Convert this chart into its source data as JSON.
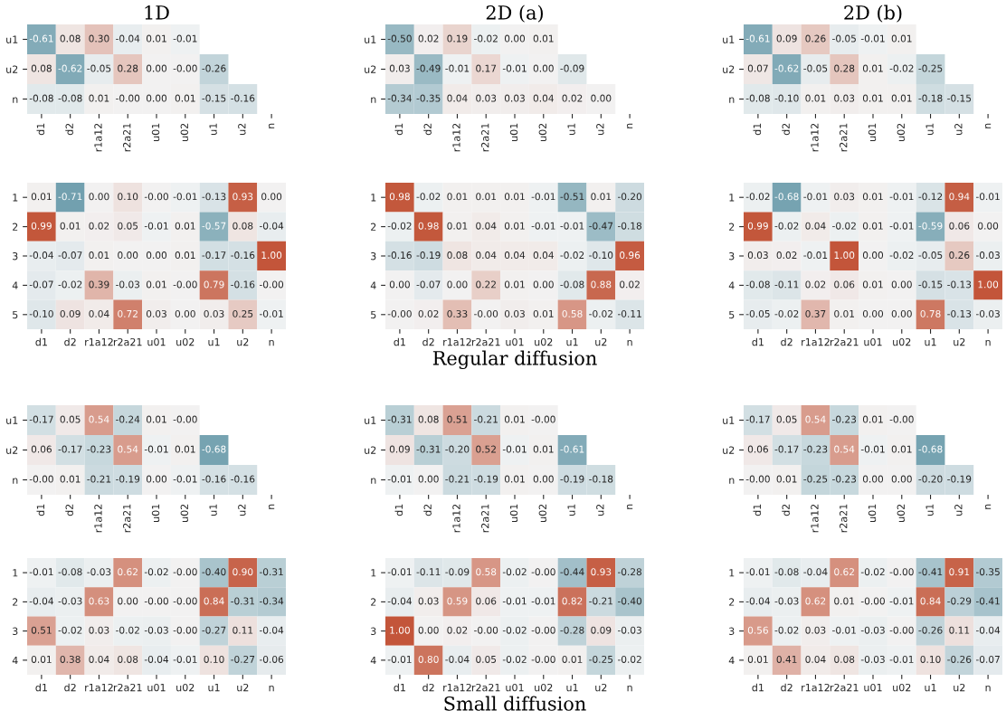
{
  "chart_data": [
    {
      "type": "heatmap",
      "title": "1D",
      "categories": [
        "d1",
        "d2",
        "r1a12",
        "r2a21",
        "u01",
        "u02",
        "u1",
        "u2",
        "n"
      ],
      "y_categories": [
        "u1",
        "u2",
        "n"
      ],
      "cells": [
        [
          -0.61,
          0.08,
          0.3,
          -0.04,
          0.01,
          -0.01,
          null,
          null,
          null
        ],
        [
          0.08,
          -0.62,
          -0.05,
          0.28,
          0.0,
          -0.0,
          -0.26,
          null,
          null
        ],
        [
          -0.08,
          -0.08,
          0.01,
          -0.0,
          0.0,
          0.01,
          -0.15,
          -0.16,
          null
        ]
      ],
      "cell_labels": [
        [
          "-0.61",
          "0.08",
          "0.30",
          "-0.04",
          "0.01",
          "-0.01",
          null,
          null,
          null
        ],
        [
          "0.08",
          "-0.62",
          "-0.05",
          "0.28",
          "0.00",
          "-0.00",
          "-0.26",
          null,
          null
        ],
        [
          "-0.08",
          "-0.08",
          "0.01",
          "-0.00",
          "0.00",
          "0.01",
          "-0.15",
          "-0.16",
          null
        ]
      ]
    },
    {
      "type": "heatmap",
      "title": "2D (a)",
      "categories": [
        "d1",
        "d2",
        "r1a12",
        "r2a21",
        "u01",
        "u02",
        "u1",
        "u2",
        "n"
      ],
      "y_categories": [
        "u1",
        "u2",
        "n"
      ],
      "cells": [
        [
          -0.5,
          0.02,
          0.19,
          -0.02,
          0.0,
          0.01,
          null,
          null,
          null
        ],
        [
          0.03,
          -0.49,
          -0.01,
          0.17,
          -0.01,
          0.0,
          -0.09,
          null,
          null
        ],
        [
          -0.34,
          -0.35,
          0.04,
          0.03,
          0.03,
          0.04,
          0.02,
          0.0,
          null
        ]
      ],
      "cell_labels": [
        [
          "-0.50",
          "0.02",
          "0.19",
          "-0.02",
          "0.00",
          "0.01",
          null,
          null,
          null
        ],
        [
          "0.03",
          "-0.49",
          "-0.01",
          "0.17",
          "-0.01",
          "0.00",
          "-0.09",
          null,
          null
        ],
        [
          "-0.34",
          "-0.35",
          "0.04",
          "0.03",
          "0.03",
          "0.04",
          "0.02",
          "0.00",
          null
        ]
      ]
    },
    {
      "type": "heatmap",
      "title": "2D (b)",
      "categories": [
        "d1",
        "d2",
        "r1a12",
        "r2a21",
        "u01",
        "u02",
        "u1",
        "u2",
        "n"
      ],
      "y_categories": [
        "u1",
        "u2",
        "n"
      ],
      "cells": [
        [
          -0.61,
          0.09,
          0.26,
          -0.05,
          -0.01,
          0.01,
          null,
          null,
          null
        ],
        [
          0.07,
          -0.62,
          -0.05,
          0.28,
          0.01,
          -0.02,
          -0.25,
          null,
          null
        ],
        [
          -0.08,
          -0.1,
          0.01,
          0.03,
          0.01,
          0.01,
          -0.18,
          -0.15,
          null
        ]
      ],
      "cell_labels": [
        [
          "-0.61",
          "0.09",
          "0.26",
          "-0.05",
          "-0.01",
          "0.01",
          null,
          null,
          null
        ],
        [
          "0.07",
          "-0.62",
          "-0.05",
          "0.28",
          "0.01",
          "-0.02",
          "-0.25",
          null,
          null
        ],
        [
          "-0.08",
          "-0.10",
          "0.01",
          "0.03",
          "0.01",
          "0.01",
          "-0.18",
          "-0.15",
          null
        ]
      ]
    },
    {
      "type": "heatmap",
      "categories": [
        "d1",
        "d2",
        "r1a12",
        "r2a21",
        "u01",
        "u02",
        "u1",
        "u2",
        "n"
      ],
      "y_categories": [
        "1",
        "2",
        "3",
        "4",
        "5"
      ],
      "cells": [
        [
          0.01,
          -0.71,
          0.0,
          0.1,
          -0.0,
          -0.01,
          -0.13,
          0.93,
          0.0
        ],
        [
          0.99,
          0.01,
          0.02,
          0.05,
          -0.01,
          0.01,
          -0.57,
          0.08,
          -0.04
        ],
        [
          -0.04,
          -0.07,
          0.01,
          0.0,
          0.0,
          0.01,
          -0.17,
          -0.16,
          1.0
        ],
        [
          -0.07,
          -0.02,
          0.39,
          -0.03,
          0.01,
          -0.0,
          0.79,
          -0.16,
          -0.0
        ],
        [
          -0.1,
          0.09,
          0.04,
          0.72,
          0.03,
          0.0,
          0.03,
          0.25,
          -0.01
        ]
      ],
      "cell_labels": [
        [
          "0.01",
          "-0.71",
          "0.00",
          "0.10",
          "-0.00",
          "-0.01",
          "-0.13",
          "0.93",
          "0.00"
        ],
        [
          "0.99",
          "0.01",
          "0.02",
          "0.05",
          "-0.01",
          "0.01",
          "-0.57",
          "0.08",
          "-0.04"
        ],
        [
          "-0.04",
          "-0.07",
          "0.01",
          "0.00",
          "0.00",
          "0.01",
          "-0.17",
          "-0.16",
          "1.00"
        ],
        [
          "-0.07",
          "-0.02",
          "0.39",
          "-0.03",
          "0.01",
          "-0.00",
          "0.79",
          "-0.16",
          "-0.00"
        ],
        [
          "-0.10",
          "0.09",
          "0.04",
          "0.72",
          "0.03",
          "0.00",
          "0.03",
          "0.25",
          "-0.01"
        ]
      ]
    },
    {
      "type": "heatmap",
      "categories": [
        "d1",
        "d2",
        "r1a12",
        "r2a21",
        "u01",
        "u02",
        "u1",
        "u2",
        "n"
      ],
      "y_categories": [
        "1",
        "2",
        "3",
        "4",
        "5"
      ],
      "annotations": [
        "Regular diffusion"
      ],
      "cells": [
        [
          0.98,
          -0.02,
          0.01,
          0.01,
          0.01,
          -0.01,
          -0.51,
          0.01,
          -0.2
        ],
        [
          -0.02,
          0.98,
          0.01,
          0.04,
          0.01,
          -0.01,
          -0.01,
          -0.47,
          -0.18
        ],
        [
          -0.16,
          -0.19,
          0.08,
          0.04,
          0.04,
          0.04,
          -0.02,
          -0.1,
          0.96
        ],
        [
          0.0,
          -0.07,
          0.0,
          0.22,
          0.01,
          0.0,
          -0.08,
          0.88,
          0.02
        ],
        [
          -0.0,
          0.02,
          0.33,
          -0.0,
          0.03,
          0.01,
          0.58,
          -0.02,
          -0.11
        ]
      ],
      "cell_labels": [
        [
          "0.98",
          "-0.02",
          "0.01",
          "0.01",
          "0.01",
          "-0.01",
          "-0.51",
          "0.01",
          "-0.20"
        ],
        [
          "-0.02",
          "0.98",
          "0.01",
          "0.04",
          "0.01",
          "-0.01",
          "-0.01",
          "-0.47",
          "-0.18"
        ],
        [
          "-0.16",
          "-0.19",
          "0.08",
          "0.04",
          "0.04",
          "0.04",
          "-0.02",
          "-0.10",
          "0.96"
        ],
        [
          "0.00",
          "-0.07",
          "0.00",
          "0.22",
          "0.01",
          "0.00",
          "-0.08",
          "0.88",
          "0.02"
        ],
        [
          "-0.00",
          "0.02",
          "0.33",
          "-0.00",
          "0.03",
          "0.01",
          "0.58",
          "-0.02",
          "-0.11"
        ]
      ]
    },
    {
      "type": "heatmap",
      "categories": [
        "d1",
        "d2",
        "r1a12",
        "r2a21",
        "u01",
        "u02",
        "u1",
        "u2",
        "n"
      ],
      "y_categories": [
        "1",
        "2",
        "3",
        "4",
        "5"
      ],
      "cells": [
        [
          -0.02,
          -0.68,
          -0.01,
          0.03,
          0.01,
          -0.01,
          -0.12,
          0.94,
          -0.01
        ],
        [
          0.99,
          -0.02,
          0.04,
          -0.02,
          0.01,
          -0.01,
          -0.59,
          0.06,
          0.0
        ],
        [
          0.03,
          0.02,
          -0.01,
          1.0,
          0.0,
          -0.02,
          -0.05,
          0.26,
          -0.03
        ],
        [
          -0.08,
          -0.11,
          0.02,
          0.06,
          0.01,
          0.0,
          -0.15,
          -0.13,
          1.0
        ],
        [
          -0.05,
          -0.02,
          0.37,
          0.01,
          0.0,
          0.0,
          0.78,
          -0.13,
          -0.03
        ]
      ],
      "cell_labels": [
        [
          "-0.02",
          "-0.68",
          "-0.01",
          "0.03",
          "0.01",
          "-0.01",
          "-0.12",
          "0.94",
          "-0.01"
        ],
        [
          "0.99",
          "-0.02",
          "0.04",
          "-0.02",
          "0.01",
          "-0.01",
          "-0.59",
          "0.06",
          "0.00"
        ],
        [
          "0.03",
          "0.02",
          "-0.01",
          "1.00",
          "0.00",
          "-0.02",
          "-0.05",
          "0.26",
          "-0.03"
        ],
        [
          "-0.08",
          "-0.11",
          "0.02",
          "0.06",
          "0.01",
          "0.00",
          "-0.15",
          "-0.13",
          "1.00"
        ],
        [
          "-0.05",
          "-0.02",
          "0.37",
          "0.01",
          "0.00",
          "0.00",
          "0.78",
          "-0.13",
          "-0.03"
        ]
      ]
    },
    {
      "type": "heatmap",
      "categories": [
        "d1",
        "d2",
        "r1a12",
        "r2a21",
        "u01",
        "u02",
        "u1",
        "u2",
        "n"
      ],
      "y_categories": [
        "u1",
        "u2",
        "n"
      ],
      "cells": [
        [
          -0.17,
          0.05,
          0.54,
          -0.24,
          0.01,
          -0.0,
          null,
          null,
          null
        ],
        [
          0.06,
          -0.17,
          -0.23,
          0.54,
          -0.01,
          0.01,
          -0.68,
          null,
          null
        ],
        [
          -0.0,
          0.01,
          -0.21,
          -0.19,
          0.0,
          -0.01,
          -0.16,
          -0.16,
          null
        ]
      ],
      "cell_labels": [
        [
          "-0.17",
          "0.05",
          "0.54",
          "-0.24",
          "0.01",
          "-0.00",
          null,
          null,
          null
        ],
        [
          "0.06",
          "-0.17",
          "-0.23",
          "0.54",
          "-0.01",
          "0.01",
          "-0.68",
          null,
          null
        ],
        [
          "-0.00",
          "0.01",
          "-0.21",
          "-0.19",
          "0.00",
          "-0.01",
          "-0.16",
          "-0.16",
          null
        ]
      ]
    },
    {
      "type": "heatmap",
      "categories": [
        "d1",
        "d2",
        "r1a12",
        "r2a21",
        "u01",
        "u02",
        "u1",
        "u2",
        "n"
      ],
      "y_categories": [
        "u1",
        "u2",
        "n"
      ],
      "cells": [
        [
          -0.31,
          0.08,
          0.51,
          -0.21,
          0.01,
          -0.0,
          null,
          null,
          null
        ],
        [
          0.09,
          -0.31,
          -0.2,
          0.52,
          -0.01,
          0.01,
          -0.61,
          null,
          null
        ],
        [
          -0.01,
          0.0,
          -0.21,
          -0.19,
          0.01,
          0.0,
          -0.19,
          -0.18,
          null
        ]
      ],
      "cell_labels": [
        [
          "-0.31",
          "0.08",
          "0.51",
          "-0.21",
          "0.01",
          "-0.00",
          null,
          null,
          null
        ],
        [
          "0.09",
          "-0.31",
          "-0.20",
          "0.52",
          "-0.01",
          "0.01",
          "-0.61",
          null,
          null
        ],
        [
          "-0.01",
          "0.00",
          "-0.21",
          "-0.19",
          "0.01",
          "0.00",
          "-0.19",
          "-0.18",
          null
        ]
      ]
    },
    {
      "type": "heatmap",
      "categories": [
        "d1",
        "d2",
        "r1a12",
        "r2a21",
        "u01",
        "u02",
        "u1",
        "u2",
        "n"
      ],
      "y_categories": [
        "u1",
        "u2",
        "n"
      ],
      "cells": [
        [
          -0.17,
          0.05,
          0.54,
          -0.23,
          0.01,
          -0.0,
          null,
          null,
          null
        ],
        [
          0.06,
          -0.17,
          -0.23,
          0.54,
          -0.01,
          0.01,
          -0.68,
          null,
          null
        ],
        [
          -0.0,
          0.01,
          -0.25,
          -0.23,
          0.0,
          0.0,
          -0.2,
          -0.19,
          null
        ]
      ],
      "cell_labels": [
        [
          "-0.17",
          "0.05",
          "0.54",
          "-0.23",
          "0.01",
          "-0.00",
          null,
          null,
          null
        ],
        [
          "0.06",
          "-0.17",
          "-0.23",
          "0.54",
          "-0.01",
          "0.01",
          "-0.68",
          null,
          null
        ],
        [
          "-0.00",
          "0.01",
          "-0.25",
          "-0.23",
          "0.00",
          "0.00",
          "-0.20",
          "-0.19",
          null
        ]
      ]
    },
    {
      "type": "heatmap",
      "categories": [
        "d1",
        "d2",
        "r1a12",
        "r2a21",
        "u01",
        "u02",
        "u1",
        "u2",
        "n"
      ],
      "y_categories": [
        "1",
        "2",
        "3",
        "4"
      ],
      "cells": [
        [
          -0.01,
          -0.08,
          -0.03,
          0.62,
          -0.02,
          -0.0,
          -0.4,
          0.9,
          -0.31
        ],
        [
          -0.04,
          -0.03,
          0.63,
          0.0,
          -0.0,
          -0.0,
          0.84,
          -0.31,
          -0.34
        ],
        [
          0.51,
          -0.02,
          0.03,
          -0.02,
          -0.03,
          -0.0,
          -0.27,
          0.11,
          -0.04
        ],
        [
          0.01,
          0.38,
          0.04,
          0.08,
          -0.04,
          -0.01,
          0.1,
          -0.27,
          -0.06
        ]
      ],
      "cell_labels": [
        [
          "-0.01",
          "-0.08",
          "-0.03",
          "0.62",
          "-0.02",
          "-0.00",
          "-0.40",
          "0.90",
          "-0.31"
        ],
        [
          "-0.04",
          "-0.03",
          "0.63",
          "0.00",
          "-0.00",
          "-0.00",
          "0.84",
          "-0.31",
          "-0.34"
        ],
        [
          "0.51",
          "-0.02",
          "0.03",
          "-0.02",
          "-0.03",
          "-0.00",
          "-0.27",
          "0.11",
          "-0.04"
        ],
        [
          "0.01",
          "0.38",
          "0.04",
          "0.08",
          "-0.04",
          "-0.01",
          "0.10",
          "-0.27",
          "-0.06"
        ]
      ]
    },
    {
      "type": "heatmap",
      "categories": [
        "d1",
        "d2",
        "r1a12",
        "r2a21",
        "u01",
        "u02",
        "u1",
        "u2",
        "n"
      ],
      "y_categories": [
        "1",
        "2",
        "3",
        "4"
      ],
      "annotations": [
        "Small diffusion"
      ],
      "cells": [
        [
          -0.01,
          -0.11,
          -0.09,
          0.58,
          -0.02,
          -0.0,
          -0.44,
          0.93,
          -0.28
        ],
        [
          -0.04,
          0.03,
          0.59,
          0.06,
          -0.01,
          -0.01,
          0.82,
          -0.21,
          -0.4
        ],
        [
          1.0,
          0.0,
          0.02,
          -0.0,
          -0.02,
          -0.0,
          -0.28,
          0.09,
          -0.03
        ],
        [
          -0.01,
          0.8,
          -0.04,
          0.05,
          -0.02,
          -0.0,
          0.01,
          -0.25,
          -0.02
        ]
      ],
      "cell_labels": [
        [
          "-0.01",
          "-0.11",
          "-0.09",
          "0.58",
          "-0.02",
          "-0.00",
          "-0.44",
          "0.93",
          "-0.28"
        ],
        [
          "-0.04",
          "0.03",
          "0.59",
          "0.06",
          "-0.01",
          "-0.01",
          "0.82",
          "-0.21",
          "-0.40"
        ],
        [
          "1.00",
          "0.00",
          "0.02",
          "-0.00",
          "-0.02",
          "-0.00",
          "-0.28",
          "0.09",
          "-0.03"
        ],
        [
          "-0.01",
          "0.80",
          "-0.04",
          "0.05",
          "-0.02",
          "-0.00",
          "0.01",
          "-0.25",
          "-0.02"
        ]
      ]
    },
    {
      "type": "heatmap",
      "categories": [
        "d1",
        "d2",
        "r1a12",
        "r2a21",
        "u01",
        "u02",
        "u1",
        "u2",
        "n"
      ],
      "y_categories": [
        "1",
        "2",
        "3",
        "4"
      ],
      "cells": [
        [
          -0.01,
          -0.08,
          -0.04,
          0.62,
          -0.02,
          -0.0,
          -0.41,
          0.91,
          -0.35
        ],
        [
          -0.04,
          -0.03,
          0.62,
          0.01,
          -0.0,
          -0.01,
          0.84,
          -0.29,
          -0.41
        ],
        [
          0.56,
          -0.02,
          0.03,
          -0.01,
          -0.03,
          -0.0,
          -0.26,
          0.11,
          -0.04
        ],
        [
          0.01,
          0.41,
          0.04,
          0.08,
          -0.03,
          -0.01,
          0.1,
          -0.26,
          -0.07
        ]
      ],
      "cell_labels": [
        [
          "-0.01",
          "-0.08",
          "-0.04",
          "0.62",
          "-0.02",
          "-0.00",
          "-0.41",
          "0.91",
          "-0.35"
        ],
        [
          "-0.04",
          "-0.03",
          "0.62",
          "0.01",
          "-0.00",
          "-0.01",
          "0.84",
          "-0.29",
          "-0.41"
        ],
        [
          "0.56",
          "-0.02",
          "0.03",
          "-0.01",
          "-0.03",
          "-0.00",
          "-0.26",
          "0.11",
          "-0.04"
        ],
        [
          "0.01",
          "0.41",
          "0.04",
          "0.08",
          "-0.03",
          "-0.01",
          "0.10",
          "-0.26",
          "-0.07"
        ]
      ]
    }
  ]
}
